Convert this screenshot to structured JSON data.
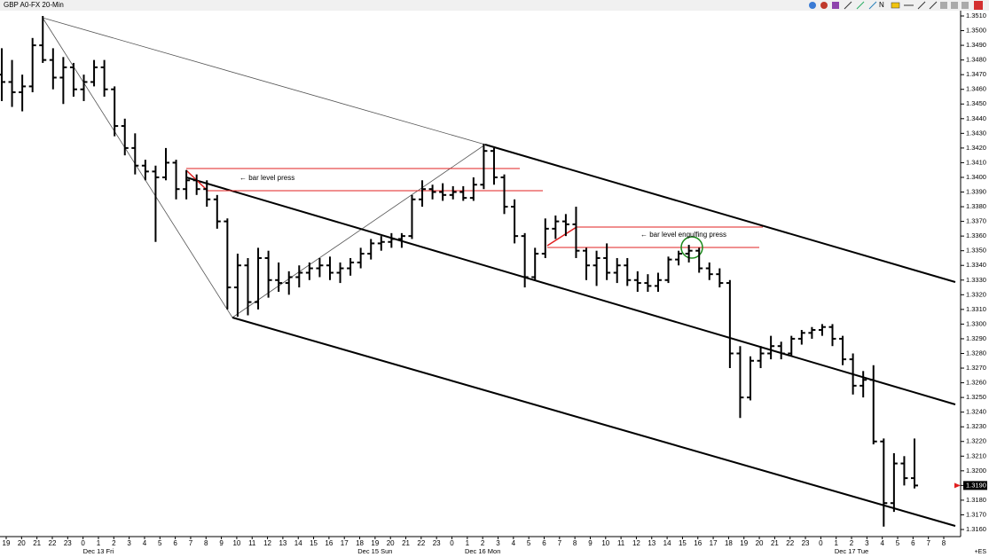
{
  "chart_data": {
    "type": "ohlc",
    "title": "GBP A0-FX 20-Min",
    "color": "#000000",
    "ohlc": [
      [
        1.347,
        1.3488,
        1.3452,
        1.3465
      ],
      [
        1.3465,
        1.348,
        1.3448,
        1.3458
      ],
      [
        1.3458,
        1.347,
        1.3445,
        1.3462
      ],
      [
        1.3462,
        1.3495,
        1.3458,
        1.349
      ],
      [
        1.349,
        1.351,
        1.3478,
        1.348
      ],
      [
        1.348,
        1.3488,
        1.346,
        1.3468
      ],
      [
        1.3468,
        1.3482,
        1.345,
        1.3475
      ],
      [
        1.3475,
        1.3478,
        1.3455,
        1.346
      ],
      [
        1.346,
        1.347,
        1.3452,
        1.3465
      ],
      [
        1.3465,
        1.348,
        1.3462,
        1.3475
      ],
      [
        1.3475,
        1.348,
        1.3455,
        1.346
      ],
      [
        1.346,
        1.3462,
        1.3428,
        1.3435
      ],
      [
        1.3435,
        1.344,
        1.3415,
        1.342
      ],
      [
        1.342,
        1.343,
        1.3402,
        1.3408
      ],
      [
        1.3408,
        1.3412,
        1.3398,
        1.3404
      ],
      [
        1.3404,
        1.3408,
        1.3356,
        1.34
      ],
      [
        1.34,
        1.342,
        1.3398,
        1.341
      ],
      [
        1.341,
        1.3412,
        1.3385,
        1.3392
      ],
      [
        1.3392,
        1.3405,
        1.3385,
        1.3398
      ],
      [
        1.3398,
        1.3402,
        1.3388,
        1.3392
      ],
      [
        1.3392,
        1.3398,
        1.338,
        1.3385
      ],
      [
        1.3385,
        1.3388,
        1.3365,
        1.337
      ],
      [
        1.337,
        1.3372,
        1.331,
        1.3325
      ],
      [
        1.3325,
        1.3348,
        1.3305,
        1.334
      ],
      [
        1.334,
        1.3345,
        1.3306,
        1.3315
      ],
      [
        1.3315,
        1.3352,
        1.331,
        1.3345
      ],
      [
        1.3345,
        1.335,
        1.3318,
        1.333
      ],
      [
        1.333,
        1.3342,
        1.3322,
        1.3328
      ],
      [
        1.3328,
        1.3336,
        1.332,
        1.3332
      ],
      [
        1.3332,
        1.334,
        1.3325,
        1.3335
      ],
      [
        1.3335,
        1.3342,
        1.333,
        1.3338
      ],
      [
        1.3338,
        1.3345,
        1.3332,
        1.334
      ],
      [
        1.334,
        1.3346,
        1.333,
        1.3335
      ],
      [
        1.3335,
        1.3342,
        1.3328,
        1.3338
      ],
      [
        1.3338,
        1.3345,
        1.3333,
        1.3342
      ],
      [
        1.3342,
        1.3352,
        1.3338,
        1.3348
      ],
      [
        1.3348,
        1.3358,
        1.3344,
        1.3355
      ],
      [
        1.3355,
        1.336,
        1.335,
        1.3356
      ],
      [
        1.3356,
        1.3362,
        1.3352,
        1.3358
      ],
      [
        1.3358,
        1.3362,
        1.3352,
        1.336
      ],
      [
        1.336,
        1.3388,
        1.3358,
        1.3385
      ],
      [
        1.3385,
        1.3398,
        1.338,
        1.3392
      ],
      [
        1.3392,
        1.3395,
        1.3385,
        1.339
      ],
      [
        1.339,
        1.3396,
        1.3384,
        1.3388
      ],
      [
        1.3388,
        1.3394,
        1.3385,
        1.339
      ],
      [
        1.339,
        1.3394,
        1.3384,
        1.3386
      ],
      [
        1.3386,
        1.34,
        1.3384,
        1.3395
      ],
      [
        1.3395,
        1.3423,
        1.3392,
        1.3418
      ],
      [
        1.3418,
        1.342,
        1.3395,
        1.34
      ],
      [
        1.34,
        1.3402,
        1.3375,
        1.338
      ],
      [
        1.338,
        1.3385,
        1.3355,
        1.336
      ],
      [
        1.336,
        1.3362,
        1.3325,
        1.3332
      ],
      [
        1.3332,
        1.3352,
        1.333,
        1.3348
      ],
      [
        1.3348,
        1.3372,
        1.3345,
        1.3365
      ],
      [
        1.3365,
        1.3374,
        1.3358,
        1.337
      ],
      [
        1.337,
        1.3375,
        1.336,
        1.3368
      ],
      [
        1.3368,
        1.338,
        1.3345,
        1.335
      ],
      [
        1.335,
        1.3352,
        1.333,
        1.334
      ],
      [
        1.334,
        1.335,
        1.3326,
        1.3345
      ],
      [
        1.3345,
        1.3355,
        1.333,
        1.3335
      ],
      [
        1.3335,
        1.3345,
        1.3328,
        1.334
      ],
      [
        1.334,
        1.3345,
        1.3326,
        1.333
      ],
      [
        1.333,
        1.3336,
        1.3322,
        1.3328
      ],
      [
        1.3328,
        1.3334,
        1.3322,
        1.3326
      ],
      [
        1.3326,
        1.3335,
        1.3322,
        1.333
      ],
      [
        1.333,
        1.3346,
        1.3328,
        1.3344
      ],
      [
        1.3344,
        1.335,
        1.334,
        1.3348
      ],
      [
        1.3348,
        1.3354,
        1.3342,
        1.335
      ],
      [
        1.335,
        1.3352,
        1.3335,
        1.3338
      ],
      [
        1.3338,
        1.3342,
        1.333,
        1.3334
      ],
      [
        1.3334,
        1.3338,
        1.3325,
        1.3328
      ],
      [
        1.3328,
        1.333,
        1.327,
        1.328
      ],
      [
        1.328,
        1.3285,
        1.3236,
        1.325
      ],
      [
        1.325,
        1.3278,
        1.3248,
        1.3275
      ],
      [
        1.3275,
        1.3285,
        1.327,
        1.328
      ],
      [
        1.328,
        1.3292,
        1.3276,
        1.3285
      ],
      [
        1.3285,
        1.3288,
        1.3276,
        1.328
      ],
      [
        1.328,
        1.3292,
        1.3278,
        1.329
      ],
      [
        1.329,
        1.3296,
        1.3286,
        1.3294
      ],
      [
        1.3294,
        1.3298,
        1.329,
        1.3296
      ],
      [
        1.3296,
        1.33,
        1.3292,
        1.3298
      ],
      [
        1.3298,
        1.33,
        1.3285,
        1.329
      ],
      [
        1.329,
        1.3292,
        1.3272,
        1.3276
      ],
      [
        1.3276,
        1.328,
        1.3252,
        1.3258
      ],
      [
        1.3258,
        1.3268,
        1.325,
        1.3262
      ],
      [
        1.3262,
        1.3272,
        1.3218,
        1.322
      ],
      [
        1.322,
        1.3222,
        1.3162,
        1.3178
      ],
      [
        1.3178,
        1.3212,
        1.3172,
        1.3205
      ],
      [
        1.3205,
        1.321,
        1.319,
        1.3195
      ],
      [
        1.3195,
        1.3222,
        1.3188,
        1.319
      ]
    ],
    "ylim": [
      1.351,
      1.316
    ],
    "yticks": [
      {
        "value": 1.351,
        "label": "1.3510"
      },
      {
        "value": 1.35,
        "label": "1.3500"
      },
      {
        "value": 1.349,
        "label": "1.3490"
      },
      {
        "value": 1.348,
        "label": "1.3480"
      },
      {
        "value": 1.347,
        "label": "1.3470"
      },
      {
        "value": 1.346,
        "label": "1.3460"
      },
      {
        "value": 1.345,
        "label": "1.3450"
      },
      {
        "value": 1.344,
        "label": "1.3440"
      },
      {
        "value": 1.343,
        "label": "1.3430"
      },
      {
        "value": 1.342,
        "label": "1.3420"
      },
      {
        "value": 1.341,
        "label": "1.3410"
      },
      {
        "value": 1.34,
        "label": "1.3400"
      },
      {
        "value": 1.339,
        "label": "1.3390"
      },
      {
        "value": 1.338,
        "label": "1.3380"
      },
      {
        "value": 1.337,
        "label": "1.3370"
      },
      {
        "value": 1.336,
        "label": "1.3360"
      },
      {
        "value": 1.335,
        "label": "1.3350"
      },
      {
        "value": 1.334,
        "label": "1.3340"
      },
      {
        "value": 1.333,
        "label": "1.3330"
      },
      {
        "value": 1.332,
        "label": "1.3320"
      },
      {
        "value": 1.331,
        "label": "1.3310"
      },
      {
        "value": 1.33,
        "label": "1.3300"
      },
      {
        "value": 1.329,
        "label": "1.3290"
      },
      {
        "value": 1.328,
        "label": "1.3280"
      },
      {
        "value": 1.327,
        "label": "1.3270"
      },
      {
        "value": 1.326,
        "label": "1.3260"
      },
      {
        "value": 1.325,
        "label": "1.3250"
      },
      {
        "value": 1.324,
        "label": "1.3240"
      },
      {
        "value": 1.323,
        "label": "1.3230"
      },
      {
        "value": 1.322,
        "label": "1.3220"
      },
      {
        "value": 1.321,
        "label": "1.3210"
      },
      {
        "value": 1.32,
        "label": "1.3200"
      },
      {
        "value": 1.319,
        "label": "1.3190"
      },
      {
        "value": 1.318,
        "label": "1.3180"
      },
      {
        "value": 1.317,
        "label": "1.3170"
      },
      {
        "value": 1.316,
        "label": "1.3160"
      }
    ],
    "x_labels": [
      "19",
      "20",
      "21",
      "22",
      "23",
      "0",
      "1",
      "2",
      "3",
      "4",
      "5",
      "6",
      "7",
      "8",
      "9",
      "10",
      "11",
      "12",
      "13",
      "14",
      "15",
      "16",
      "17",
      "18",
      "19",
      "20",
      "21",
      "22",
      "23",
      "0",
      "1",
      "2",
      "3",
      "4",
      "5",
      "6",
      "7",
      "8",
      "9",
      "10",
      "11",
      "12",
      "13",
      "14",
      "15",
      "16",
      "17",
      "18",
      "19",
      "20",
      "21",
      "22",
      "23",
      "0",
      "1",
      "2",
      "3",
      "4",
      "5",
      "6",
      "7",
      "8"
    ],
    "date_labels": [
      null,
      null,
      null,
      null,
      null,
      null,
      "Dec 13 Fri",
      null,
      null,
      null,
      null,
      null,
      null,
      null,
      null,
      null,
      null,
      null,
      null,
      null,
      null,
      null,
      null,
      null,
      "Dec 15 Sun",
      null,
      null,
      null,
      null,
      null,
      null,
      "Dec 16 Mon",
      null,
      null,
      null,
      null,
      null,
      null,
      null,
      null,
      null,
      null,
      null,
      null,
      null,
      null,
      null,
      null,
      null,
      null,
      null,
      null,
      null,
      null,
      null,
      "Dec 17 Tue",
      null,
      null,
      null,
      null,
      null,
      null
    ],
    "last_price": {
      "value": 1.319,
      "label": "1.3190"
    },
    "annotations": [
      "← bar level press",
      "← bar level engulfing press"
    ],
    "corner_label": "+ES"
  }
}
